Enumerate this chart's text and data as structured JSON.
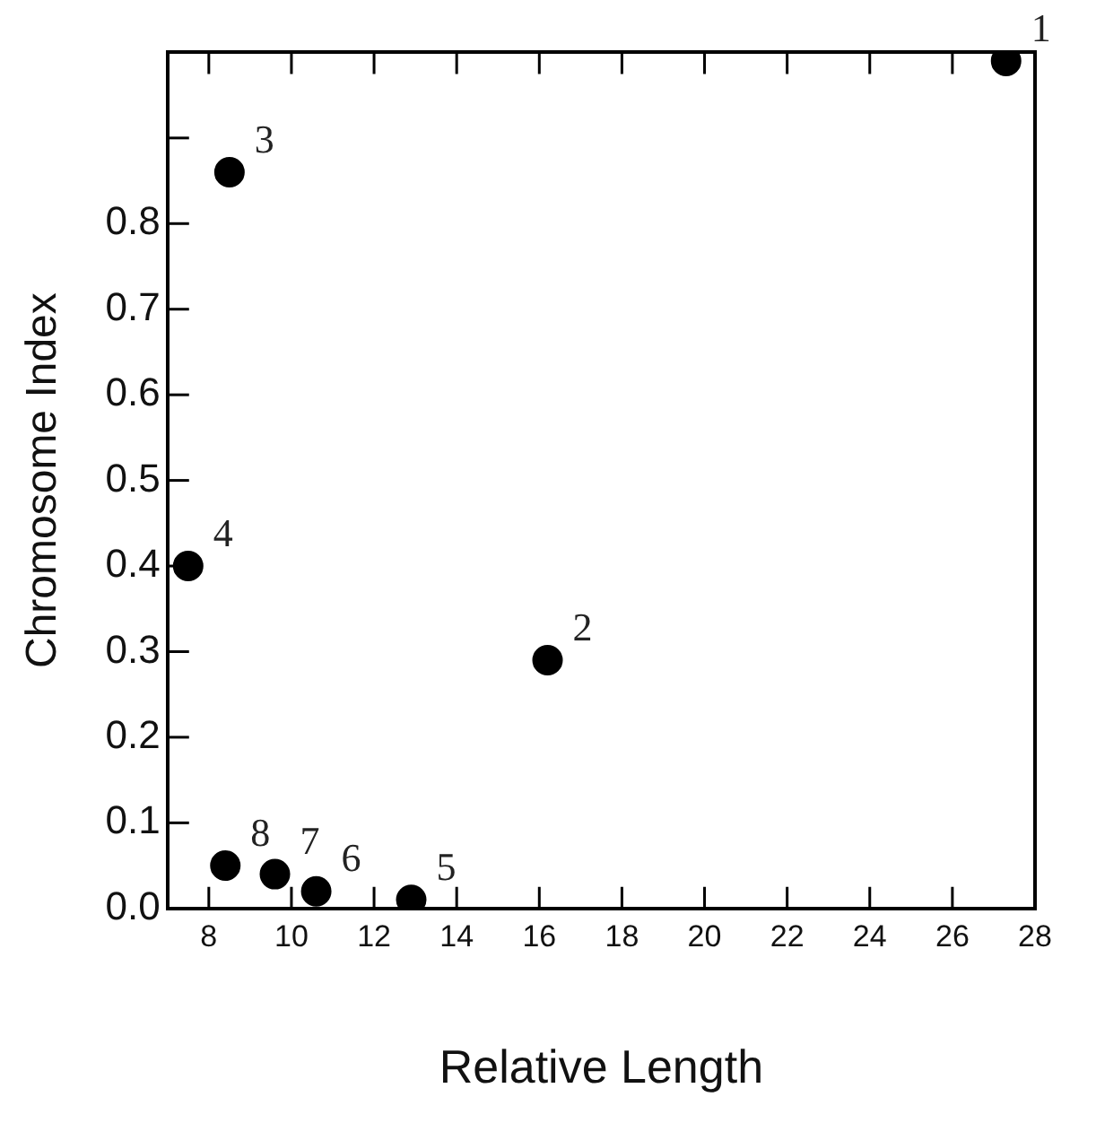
{
  "chart_data": {
    "type": "scatter",
    "xlabel": "Relative Length",
    "ylabel": "Chromosome Index",
    "x": [
      27.3,
      16.2,
      8.5,
      7.5,
      12.9,
      10.6,
      9.6,
      8.4
    ],
    "values": [
      0.99,
      0.29,
      0.86,
      0.4,
      0.01,
      0.02,
      0.04,
      0.05
    ],
    "color": "#000000",
    "marker": "circle",
    "grid": false,
    "legend": false,
    "xlim": [
      7,
      28
    ],
    "xticks": [
      8,
      10,
      12,
      14,
      16,
      18,
      20,
      22,
      24,
      26,
      28
    ],
    "ylim": [
      0,
      1
    ],
    "yticks": [
      {
        "value": 0,
        "label": "0.0"
      },
      {
        "value": 0.1,
        "label": "0.1"
      },
      {
        "value": 0.2,
        "label": "0.2"
      },
      {
        "value": 0.3,
        "label": "0.3"
      },
      {
        "value": 0.4,
        "label": "0.4"
      },
      {
        "value": 0.5,
        "label": "0.5"
      },
      {
        "value": 0.6,
        "label": "0.6"
      },
      {
        "value": 0.7,
        "label": "0.7"
      },
      {
        "value": 0.8,
        "label": "0.8"
      },
      {
        "value": 0.9,
        "label": null
      }
    ],
    "annotations": [
      {
        "text": "1",
        "x": 27.3,
        "y": 0.99
      },
      {
        "text": "2",
        "x": 16.2,
        "y": 0.29
      },
      {
        "text": "3",
        "x": 8.5,
        "y": 0.86
      },
      {
        "text": "4",
        "x": 7.5,
        "y": 0.4
      },
      {
        "text": "5",
        "x": 12.9,
        "y": 0.01
      },
      {
        "text": "6",
        "x": 10.6,
        "y": 0.02
      },
      {
        "text": "7",
        "x": 9.6,
        "y": 0.04
      },
      {
        "text": "8",
        "x": 8.4,
        "y": 0.05
      }
    ]
  }
}
